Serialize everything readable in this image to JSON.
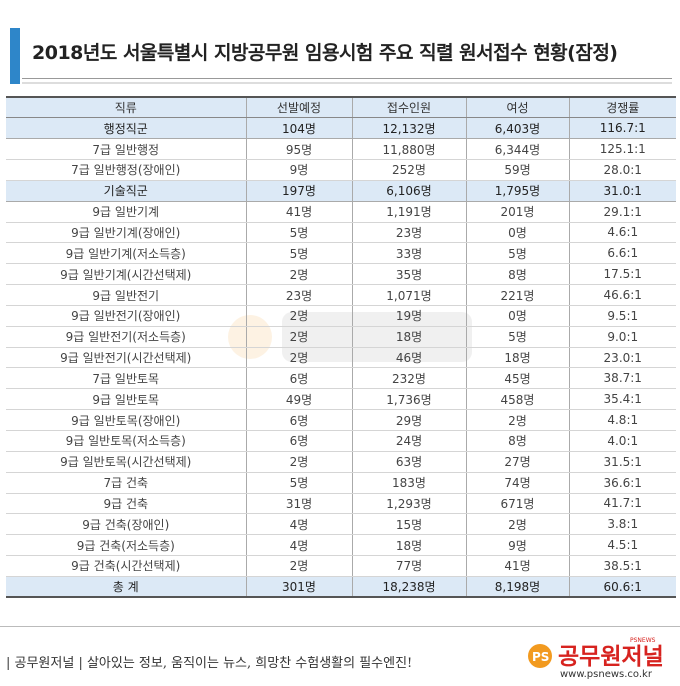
{
  "title": "2018년도 서울특별시 지방공무원 임용시험 주요 직렬 원서접수 현황(잠정)",
  "table": {
    "headers": [
      "직류",
      "선발예정",
      "접수인원",
      "여성",
      "경쟁률"
    ],
    "rows": [
      {
        "type": "section",
        "cells": [
          "행정직군",
          "104명",
          "12,132명",
          "6,403명",
          "116.7:1"
        ]
      },
      {
        "type": "normal",
        "cells": [
          "7급 일반행정",
          "95명",
          "11,880명",
          "6,344명",
          "125.1:1"
        ]
      },
      {
        "type": "normal",
        "cells": [
          "7급 일반행정(장애인)",
          "9명",
          "252명",
          "59명",
          "28.0:1"
        ]
      },
      {
        "type": "section",
        "cells": [
          "기술직군",
          "197명",
          "6,106명",
          "1,795명",
          "31.0:1"
        ]
      },
      {
        "type": "normal",
        "cells": [
          "9급 일반기계",
          "41명",
          "1,191명",
          "201명",
          "29.1:1"
        ]
      },
      {
        "type": "normal",
        "cells": [
          "9급 일반기계(장애인)",
          "5명",
          "23명",
          "0명",
          "4.6:1"
        ]
      },
      {
        "type": "normal",
        "cells": [
          "9급 일반기계(저소득층)",
          "5명",
          "33명",
          "5명",
          "6.6:1"
        ]
      },
      {
        "type": "normal",
        "cells": [
          "9급 일반기계(시간선택제)",
          "2명",
          "35명",
          "8명",
          "17.5:1"
        ]
      },
      {
        "type": "normal",
        "cells": [
          "9급 일반전기",
          "23명",
          "1,071명",
          "221명",
          "46.6:1"
        ]
      },
      {
        "type": "normal",
        "cells": [
          "9급 일반전기(장애인)",
          "2명",
          "19명",
          "0명",
          "9.5:1"
        ]
      },
      {
        "type": "normal",
        "cells": [
          "9급 일반전기(저소득층)",
          "2명",
          "18명",
          "5명",
          "9.0:1"
        ]
      },
      {
        "type": "normal",
        "cells": [
          "9급 일반전기(시간선택제)",
          "2명",
          "46명",
          "18명",
          "23.0:1"
        ]
      },
      {
        "type": "normal",
        "cells": [
          "7급 일반토목",
          "6명",
          "232명",
          "45명",
          "38.7:1"
        ]
      },
      {
        "type": "normal",
        "cells": [
          "9급 일반토목",
          "49명",
          "1,736명",
          "458명",
          "35.4:1"
        ]
      },
      {
        "type": "normal",
        "cells": [
          "9급 일반토목(장애인)",
          "6명",
          "29명",
          "2명",
          "4.8:1"
        ]
      },
      {
        "type": "normal",
        "cells": [
          "9급 일반토목(저소득층)",
          "6명",
          "24명",
          "8명",
          "4.0:1"
        ]
      },
      {
        "type": "normal",
        "cells": [
          "9급 일반토목(시간선택제)",
          "2명",
          "63명",
          "27명",
          "31.5:1"
        ]
      },
      {
        "type": "normal",
        "cells": [
          "7급 건축",
          "5명",
          "183명",
          "74명",
          "36.6:1"
        ]
      },
      {
        "type": "normal",
        "cells": [
          "9급 건축",
          "31명",
          "1,293명",
          "671명",
          "41.7:1"
        ]
      },
      {
        "type": "normal",
        "cells": [
          "9급 건축(장애인)",
          "4명",
          "15명",
          "2명",
          "3.8:1"
        ]
      },
      {
        "type": "normal",
        "cells": [
          "9급 건축(저소득층)",
          "4명",
          "18명",
          "9명",
          "4.5:1"
        ]
      },
      {
        "type": "normal",
        "cells": [
          "9급 건축(시간선택제)",
          "2명",
          "77명",
          "41명",
          "38.5:1"
        ]
      },
      {
        "type": "total",
        "cells": [
          "총  계",
          "301명",
          "18,238명",
          "8,198명",
          "60.6:1"
        ]
      }
    ]
  },
  "footer": {
    "tagline": "| 공무원저널 |  살아있는 정보, 움직이는 뉴스, 희망찬 수험생활의 필수엔진!",
    "logo_text": "공무원저널",
    "logo_badge": "PS",
    "logo_small": "PSNEWS",
    "url": "www.psnews.co.kr"
  },
  "colors": {
    "accent": "#2e86c9",
    "header_bg": "#dce9f6",
    "logo_red": "#d7231f",
    "logo_orange": "#f29a1f"
  }
}
